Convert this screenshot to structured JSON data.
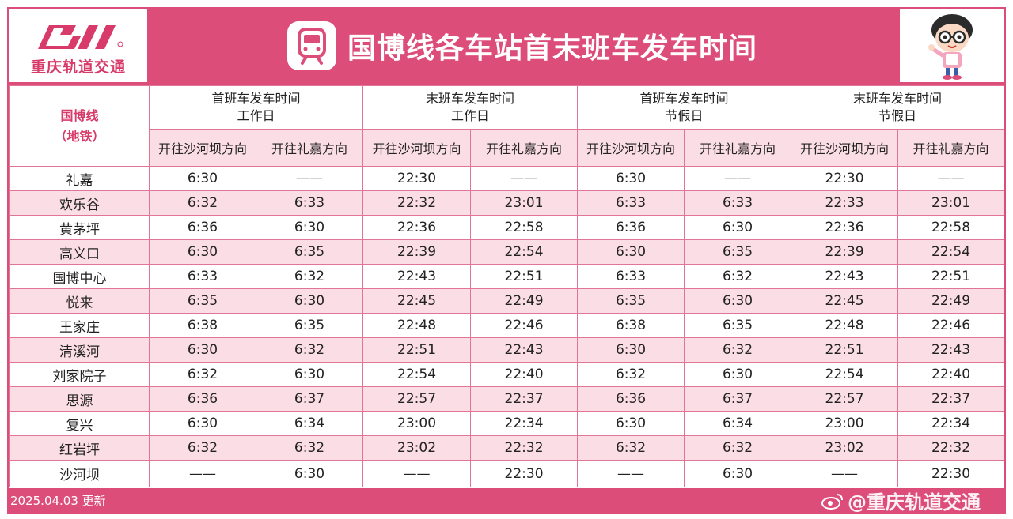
{
  "header": {
    "logo_text": "重庆轨道交通",
    "title": "国博线各车站首末班车发车时间"
  },
  "table": {
    "line_name": "国博线",
    "line_sub": "（地铁）",
    "groups": [
      {
        "top": "首班车发车时间",
        "bottom": "工作日"
      },
      {
        "top": "末班车发车时间",
        "bottom": "工作日"
      },
      {
        "top": "首班车发车时间",
        "bottom": "节假日"
      },
      {
        "top": "末班车发车时间",
        "bottom": "节假日"
      }
    ],
    "directions": [
      "开往沙河坝方向",
      "开往礼嘉方向",
      "开往沙河坝方向",
      "开往礼嘉方向",
      "开往沙河坝方向",
      "开往礼嘉方向",
      "开往沙河坝方向",
      "开往礼嘉方向"
    ],
    "rows": [
      {
        "station": "礼嘉",
        "times": [
          "6:30",
          "——",
          "22:30",
          "——",
          "6:30",
          "——",
          "22:30",
          "——"
        ]
      },
      {
        "station": "欢乐谷",
        "times": [
          "6:32",
          "6:33",
          "22:32",
          "23:01",
          "6:33",
          "6:33",
          "22:33",
          "23:01"
        ]
      },
      {
        "station": "黄茅坪",
        "times": [
          "6:36",
          "6:30",
          "22:36",
          "22:58",
          "6:36",
          "6:30",
          "22:36",
          "22:58"
        ]
      },
      {
        "station": "高义口",
        "times": [
          "6:30",
          "6:35",
          "22:39",
          "22:54",
          "6:30",
          "6:35",
          "22:39",
          "22:54"
        ]
      },
      {
        "station": "国博中心",
        "times": [
          "6:33",
          "6:32",
          "22:43",
          "22:51",
          "6:33",
          "6:32",
          "22:43",
          "22:51"
        ]
      },
      {
        "station": "悦来",
        "times": [
          "6:35",
          "6:30",
          "22:45",
          "22:49",
          "6:35",
          "6:30",
          "22:45",
          "22:49"
        ]
      },
      {
        "station": "王家庄",
        "times": [
          "6:38",
          "6:35",
          "22:48",
          "22:46",
          "6:38",
          "6:35",
          "22:48",
          "22:46"
        ]
      },
      {
        "station": "清溪河",
        "times": [
          "6:30",
          "6:32",
          "22:51",
          "22:43",
          "6:30",
          "6:32",
          "22:51",
          "22:43"
        ]
      },
      {
        "station": "刘家院子",
        "times": [
          "6:32",
          "6:30",
          "22:54",
          "22:40",
          "6:32",
          "6:30",
          "22:54",
          "22:40"
        ]
      },
      {
        "station": "思源",
        "times": [
          "6:36",
          "6:37",
          "22:57",
          "22:37",
          "6:36",
          "6:37",
          "22:57",
          "22:37"
        ]
      },
      {
        "station": "复兴",
        "times": [
          "6:30",
          "6:34",
          "23:00",
          "22:34",
          "6:30",
          "6:34",
          "23:00",
          "22:34"
        ]
      },
      {
        "station": "红岩坪",
        "times": [
          "6:32",
          "6:32",
          "23:02",
          "22:32",
          "6:32",
          "6:32",
          "23:02",
          "22:32"
        ]
      },
      {
        "station": "沙河坝",
        "times": [
          "——",
          "6:30",
          "——",
          "22:30",
          "——",
          "6:30",
          "——",
          "22:30"
        ]
      }
    ]
  },
  "footer": {
    "updated": "2025.04.03 更新",
    "watermark": "@重庆轨道交通"
  },
  "colors": {
    "brand": "#dc4d7a",
    "row_tint": "#fbdde6",
    "border": "#e07598"
  }
}
